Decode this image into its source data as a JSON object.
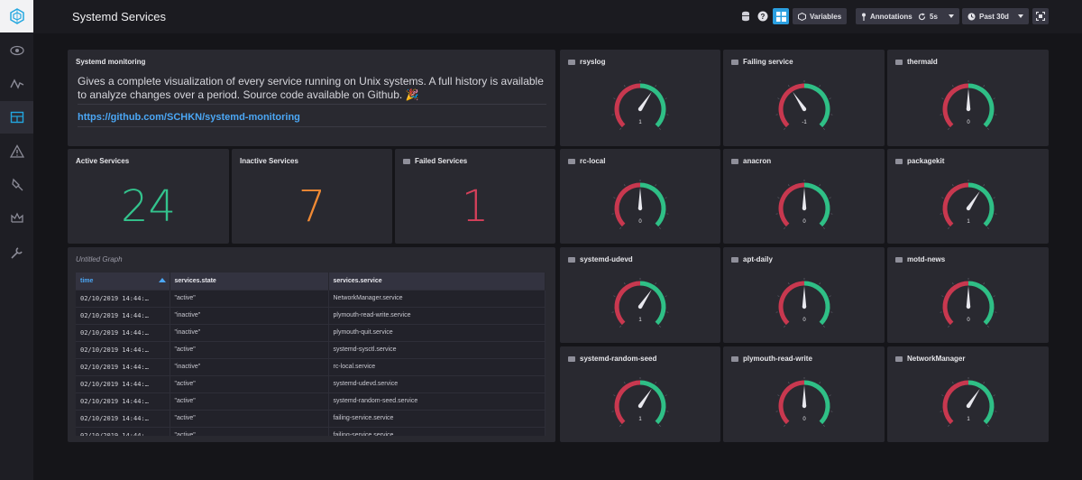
{
  "header": {
    "title": "Systemd Services",
    "variables_label": "Variables",
    "annotations_label": "Annotations",
    "refresh_label": "5s",
    "timerange_label": "Past 30d"
  },
  "sidebar": {
    "items": [
      "logo-icon",
      "eye-icon",
      "pulse-icon",
      "dashboard-icon",
      "alert-icon",
      "plug-icon",
      "crown-icon",
      "wrench-icon"
    ],
    "active": "dashboard-icon"
  },
  "monitoring": {
    "title": "Systemd monitoring",
    "description": "Gives a complete visualization of every service running on Unix systems. A full history is available to analyze changes over a period. Source code available on Github. 🎉",
    "link": "https://github.com/SCHKN/systemd-monitoring"
  },
  "stats": [
    {
      "title": "Active Services",
      "value": "24",
      "color": "#33c38d"
    },
    {
      "title": "Inactive Services",
      "value": "7",
      "color": "#f08a34"
    },
    {
      "title": "Failed Services",
      "value": "1",
      "color": "#d4405a"
    }
  ],
  "table_panel": {
    "title": "Untitled Graph",
    "columns": [
      "time",
      "services.state",
      "services.service"
    ],
    "rows": [
      [
        "02/10/2019 14:44:…",
        "\"active\"",
        "NetworkManager.service"
      ],
      [
        "02/10/2019 14:44:…",
        "\"inactive\"",
        "plymouth-read-write.service"
      ],
      [
        "02/10/2019 14:44:…",
        "\"inactive\"",
        "plymouth-quit.service"
      ],
      [
        "02/10/2019 14:44:…",
        "\"active\"",
        "systemd-sysctl.service"
      ],
      [
        "02/10/2019 14:44:…",
        "\"inactive\"",
        "rc-local.service"
      ],
      [
        "02/10/2019 14:44:…",
        "\"active\"",
        "systemd-udevd.service"
      ],
      [
        "02/10/2019 14:44:…",
        "\"active\"",
        "systemd-random-seed.service"
      ],
      [
        "02/10/2019 14:44:…",
        "\"active\"",
        "failing-service.service"
      ],
      [
        "02/10/2019 14:44:…",
        "\"active\"",
        "failing-service.service"
      ]
    ]
  },
  "gauges": [
    {
      "title": "rsyslog",
      "value": "1",
      "num": 1
    },
    {
      "title": "Failing service",
      "value": "-1",
      "num": -1
    },
    {
      "title": "thermald",
      "value": "0",
      "num": 0
    },
    {
      "title": "rc-local",
      "value": "0",
      "num": 0
    },
    {
      "title": "anacron",
      "value": "0",
      "num": 0
    },
    {
      "title": "packagekit",
      "value": "1",
      "num": 1
    },
    {
      "title": "systemd-udevd",
      "value": "1",
      "num": 1
    },
    {
      "title": "apt-daily",
      "value": "0",
      "num": 0
    },
    {
      "title": "motd-news",
      "value": "0",
      "num": 0
    },
    {
      "title": "systemd-random-seed",
      "value": "1",
      "num": 1
    },
    {
      "title": "plymouth-read-write",
      "value": "0",
      "num": 0
    },
    {
      "title": "NetworkManager",
      "value": "1",
      "num": 1
    }
  ],
  "gauge_scale": {
    "min": -4,
    "max": 4,
    "low_color": "#c8384f",
    "high_color": "#2fbf86"
  }
}
